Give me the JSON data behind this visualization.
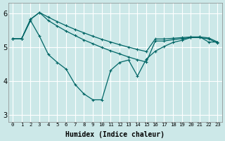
{
  "xlabel": "Humidex (Indice chaleur)",
  "bg_color": "#cce8e8",
  "grid_color": "#ffffff",
  "line_color": "#006666",
  "ylim": [
    2.8,
    6.3
  ],
  "xlim": [
    -0.5,
    23.5
  ],
  "yticks": [
    3,
    4,
    5,
    6
  ],
  "xticks": [
    0,
    1,
    2,
    3,
    4,
    5,
    6,
    7,
    8,
    9,
    10,
    11,
    12,
    13,
    14,
    15,
    16,
    17,
    18,
    19,
    20,
    21,
    22,
    23
  ],
  "line1_x": [
    0,
    1,
    2,
    3,
    4,
    5,
    6,
    7,
    8,
    9,
    10,
    11,
    12,
    13,
    14,
    15,
    16,
    17,
    18,
    19,
    20,
    21,
    22,
    23
  ],
  "line1_y": [
    5.25,
    5.25,
    5.82,
    6.02,
    5.88,
    5.75,
    5.63,
    5.52,
    5.42,
    5.32,
    5.23,
    5.15,
    5.07,
    5.0,
    4.93,
    4.87,
    5.24,
    5.24,
    5.26,
    5.28,
    5.3,
    5.3,
    5.27,
    5.15
  ],
  "line2_x": [
    0,
    1,
    2,
    3,
    4,
    5,
    6,
    7,
    8,
    9,
    10,
    11,
    12,
    13,
    14,
    15,
    16,
    17,
    18,
    19,
    20,
    21,
    22,
    23
  ],
  "line2_y": [
    5.25,
    5.25,
    5.82,
    6.02,
    5.78,
    5.62,
    5.47,
    5.34,
    5.21,
    5.1,
    4.99,
    4.89,
    4.8,
    4.71,
    4.63,
    4.56,
    5.18,
    5.18,
    5.22,
    5.25,
    5.28,
    5.28,
    5.24,
    5.12
  ],
  "line3_x": [
    0,
    1,
    2,
    3,
    4,
    5,
    6,
    7,
    8,
    9,
    10,
    11,
    12,
    13,
    14,
    15,
    16,
    17,
    18,
    19,
    20,
    21,
    22,
    23
  ],
  "line3_y": [
    5.25,
    5.25,
    5.78,
    5.32,
    4.78,
    4.55,
    4.35,
    3.9,
    3.62,
    3.45,
    3.45,
    4.32,
    4.55,
    4.62,
    4.15,
    4.65,
    4.88,
    5.02,
    5.14,
    5.2,
    5.28,
    5.3,
    5.15,
    5.15
  ]
}
